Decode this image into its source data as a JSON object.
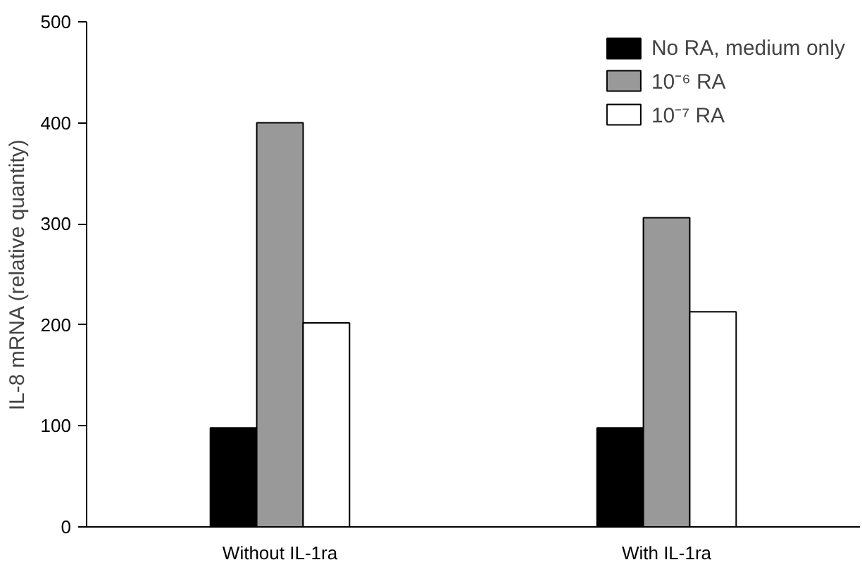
{
  "chart_data": {
    "type": "bar",
    "ylabel": "IL-8 mRNA (relative quantity)",
    "categories": [
      "Without IL-1ra",
      "With IL-1ra"
    ],
    "series": [
      {
        "name": "No RA, medium only",
        "color": "#000000",
        "values": [
          98,
          98
        ]
      },
      {
        "name": "10⁻⁶ RA",
        "color": "#999999",
        "values": [
          400,
          306
        ]
      },
      {
        "name": "10⁻⁷ RA",
        "color": "#ffffff",
        "values": [
          202,
          213
        ]
      }
    ],
    "ylim": [
      0,
      500
    ],
    "yticks": [
      0,
      100,
      200,
      300,
      400,
      500
    ],
    "grid": false,
    "legend": "top right"
  }
}
